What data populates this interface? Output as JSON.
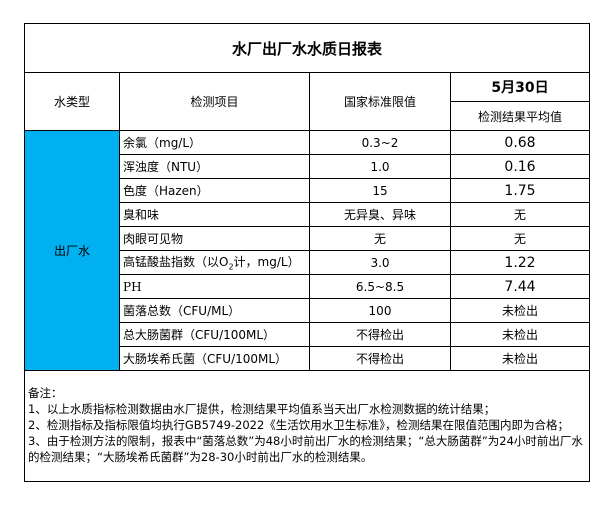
{
  "title": "水厂出厂水水质日报表",
  "headers": {
    "type": "水类型",
    "item": "检测项目",
    "limit": "国家标准限值",
    "date": "5月30日",
    "result": "检测结果平均值"
  },
  "water_type": "出厂水",
  "type_color": "#00B0F0",
  "rows": [
    {
      "item": "余氯（mg/L）",
      "limit": "0.3~2",
      "result": "0.68"
    },
    {
      "item": "浑浊度（NTU）",
      "limit": "1.0",
      "result": "0.16"
    },
    {
      "item": "色度（Hazen）",
      "limit": "15",
      "result": "1.75"
    },
    {
      "item": "臭和味",
      "limit": "无异臭、异味",
      "result": "无"
    },
    {
      "item": "肉眼可见物",
      "limit": "无",
      "result": "无"
    },
    {
      "item_pre": "高锰酸盐指数（以O",
      "item_sub": "2",
      "item_post": "计，mg/L）",
      "limit": "3.0",
      "result": "1.22"
    },
    {
      "item": "PH",
      "limit": "6.5~8.5",
      "result": "7.44"
    },
    {
      "item": "菌落总数（CFU/ML）",
      "limit": "100",
      "result": "未检出"
    },
    {
      "item": "总大肠菌群（CFU/100ML）",
      "limit": "不得检出",
      "result": "未检出"
    },
    {
      "item": "大肠埃希氏菌（CFU/100ML）",
      "limit": "不得检出",
      "result": "未检出"
    }
  ],
  "notes": {
    "heading": "备注：",
    "lines": [
      "1、以上水质指标检测数据由水厂提供，检测结果平均值系当天出厂水检测数据的统计结果；",
      "2、检测指标及指标限值均执行GB5749-2022《生活饮用水卫生标准》，检测结果在限值范围内即为合格；",
      "3、由于检测方法的限制，报表中“菌落总数”为48小时前出厂水的检测结果；“总大肠菌群”为24小时前出厂水的检测结果；“大肠埃希氏菌群”为28-30小时前出厂水的检测结果。"
    ]
  }
}
